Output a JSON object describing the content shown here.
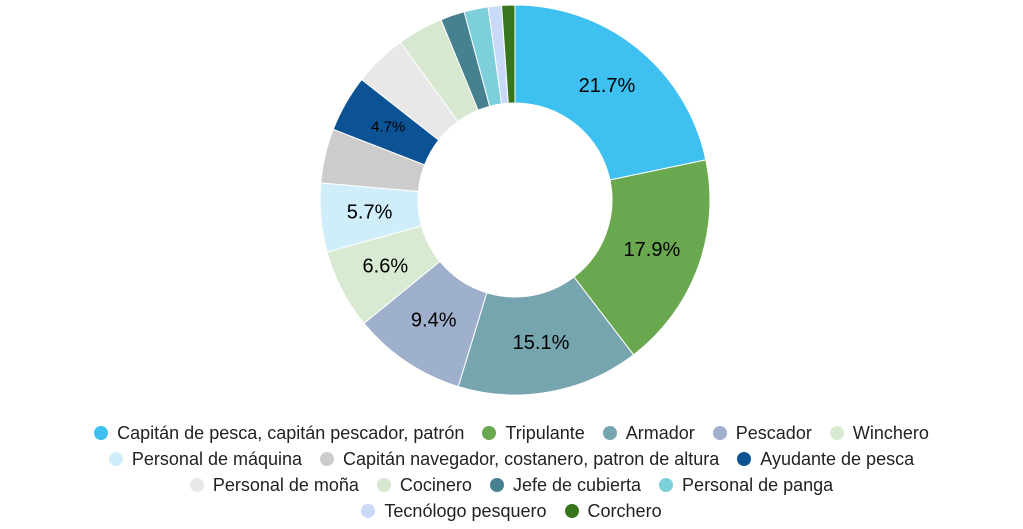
{
  "chart_data": {
    "type": "donut",
    "categories": [
      "Capitán de pesca, capitán pescador, patrón",
      "Tripulante",
      "Armador",
      "Pescador",
      "Winchero",
      "Personal de máquina",
      "Capitán navegador, costanero, patron de altura",
      "Ayudante de pesca",
      "Personal de moña",
      "Cocinero",
      "Jefe de cubierta",
      "Personal de panga",
      "Tecnólogo pesquero",
      "Corchero"
    ],
    "values": [
      21.7,
      17.9,
      15.1,
      9.4,
      6.6,
      5.7,
      4.5,
      4.7,
      4.4,
      3.8,
      2.0,
      2.0,
      1.1,
      1.1
    ],
    "value_labels": [
      "21.7%",
      "17.9%",
      "15.1%",
      "9.4%",
      "6.6%",
      "5.7%",
      null,
      "4.7%",
      null,
      null,
      null,
      null,
      null,
      null
    ],
    "colors": [
      "#3ec0f0",
      "#6aa84f",
      "#76a5af",
      "#9fb0cc",
      "#d9ead3",
      "#cfeefa",
      "#cccccc",
      "#0b5394",
      "#e8e8e8",
      "#d7e7d0",
      "#45818e",
      "#7ccfdb",
      "#c9daf8",
      "#38761d"
    ],
    "legend": "bottom"
  }
}
